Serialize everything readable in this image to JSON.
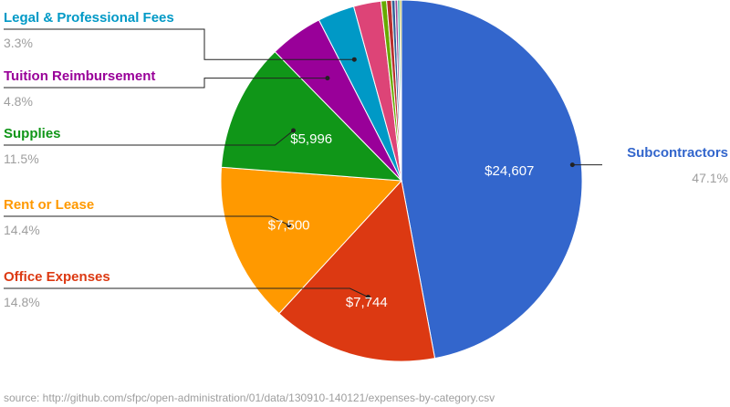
{
  "chart_data": {
    "type": "pie",
    "title": "",
    "source": "source: http://github.com/sfpc/open-administration/01/data/130910-140121/expenses-by-category.csv",
    "slices": [
      {
        "name": "Subcontractors",
        "value": 24607,
        "value_label": "$24,607",
        "percent_label": "47.1%",
        "color": "#3366cc"
      },
      {
        "name": "Office Expenses",
        "value": 7744,
        "value_label": "$7,744",
        "percent_label": "14.8%",
        "color": "#dc3912"
      },
      {
        "name": "Rent or Lease",
        "value": 7500,
        "value_label": "$7,500",
        "percent_label": "14.4%",
        "color": "#ff9900"
      },
      {
        "name": "Supplies",
        "value": 5996,
        "value_label": "$5,996",
        "percent_label": "11.5%",
        "color": "#109618"
      },
      {
        "name": "Tuition Reimbursement",
        "value": 2506,
        "value_label": "",
        "percent_label": "4.8%",
        "color": "#990099"
      },
      {
        "name": "Legal & Professional Fees",
        "value": 1723,
        "value_label": "",
        "percent_label": "3.3%",
        "color": "#0099c6"
      },
      {
        "name": "",
        "value": 1280,
        "value_label": "",
        "percent_label": "",
        "color": "#dd4477"
      },
      {
        "name": "",
        "value": 260,
        "value_label": "",
        "percent_label": "",
        "color": "#66aa00"
      },
      {
        "name": "",
        "value": 230,
        "value_label": "",
        "percent_label": "",
        "color": "#b82e2e"
      },
      {
        "name": "",
        "value": 160,
        "value_label": "",
        "percent_label": "",
        "color": "#316395"
      },
      {
        "name": "",
        "value": 120,
        "value_label": "",
        "percent_label": "",
        "color": "#994499"
      },
      {
        "name": "",
        "value": 100,
        "value_label": "",
        "percent_label": "",
        "color": "#22aa99"
      },
      {
        "name": "",
        "value": 80,
        "value_label": "",
        "percent_label": "",
        "color": "#aaaa11"
      }
    ]
  }
}
